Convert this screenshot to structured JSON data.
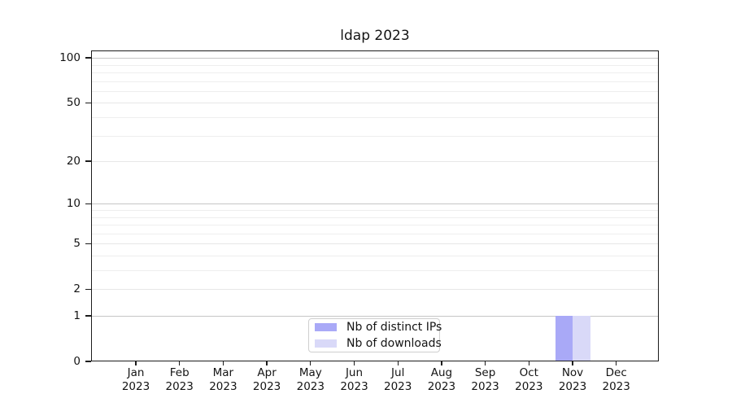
{
  "chart_data": {
    "type": "bar",
    "title": "ldap 2023",
    "categories": [
      "Jan 2023",
      "Feb 2023",
      "Mar 2023",
      "Apr 2023",
      "May 2023",
      "Jun 2023",
      "Jul 2023",
      "Aug 2023",
      "Sep 2023",
      "Oct 2023",
      "Nov 2023",
      "Dec 2023"
    ],
    "series": [
      {
        "name": "Nb of distinct IPs",
        "color": "#a9a9f7",
        "values": [
          0,
          0,
          0,
          0,
          0,
          0,
          0,
          0,
          0,
          0,
          1,
          0
        ]
      },
      {
        "name": "Nb of downloads",
        "color": "#d9d9f8",
        "values": [
          0,
          0,
          0,
          0,
          0,
          0,
          0,
          0,
          0,
          0,
          1,
          0
        ]
      }
    ],
    "y_axis": {
      "scale": "log1p",
      "ticks": [
        100,
        50,
        20,
        10,
        5,
        2,
        1,
        0
      ],
      "minor_ticks": [
        3,
        4,
        6,
        7,
        8,
        9,
        30,
        40,
        60,
        70,
        80,
        90
      ],
      "top_value": 112
    },
    "x_axis": {
      "year_on_second_line": true
    },
    "legend": {
      "position": "lower center",
      "entries": [
        "Nb of distinct IPs",
        "Nb of downloads"
      ]
    },
    "grid": true,
    "colors": {
      "major_grid": "#c6c6c6",
      "sub_grid": "#e7e7e7",
      "minor_grid": "#eeeeee",
      "axis": "#1c1c1c",
      "text": "#141414",
      "background": "#ffffff"
    }
  }
}
